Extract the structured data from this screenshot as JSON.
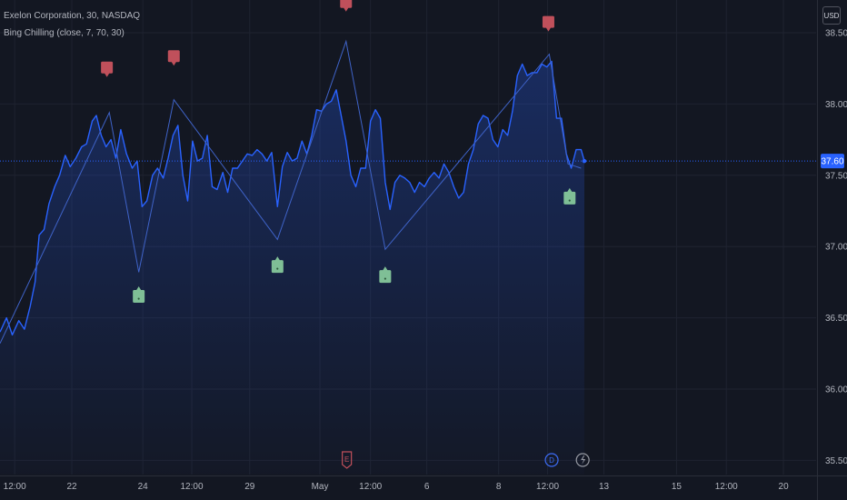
{
  "header": {
    "symbol_line": "Exelon Corporation, 30, NASDAQ",
    "indicator_line": "Bing Chilling (close, 7, 70, 30)"
  },
  "currency_button": "USD",
  "colors": {
    "background": "#131722",
    "grid": "#1f2330",
    "line": "#2962ff",
    "area_top": "rgba(41,98,255,0.28)",
    "area_bottom": "rgba(41,98,255,0.02)",
    "bear_marker": "#c0505b",
    "bull_marker": "#7fbf96",
    "axis_text": "#b2b5be",
    "price_badge": "#2962ff"
  },
  "chart_data": {
    "type": "area",
    "ylim": [
      35.4,
      38.73
    ],
    "xlim": [
      0,
      100
    ],
    "y_ticks": [
      "38.50",
      "38.00",
      "37.50",
      "37.00",
      "36.50",
      "36.00",
      "35.50"
    ],
    "y_tick_values": [
      38.5,
      38.0,
      37.5,
      37.0,
      36.5,
      36.0,
      35.5
    ],
    "x_ticks": [
      {
        "x": 1.8,
        "label": "12:00"
      },
      {
        "x": 8.8,
        "label": "22"
      },
      {
        "x": 17.5,
        "label": "24"
      },
      {
        "x": 23.5,
        "label": "12:00"
      },
      {
        "x": 30.6,
        "label": "29"
      },
      {
        "x": 39.2,
        "label": "May"
      },
      {
        "x": 45.4,
        "label": "12:00"
      },
      {
        "x": 52.3,
        "label": "6"
      },
      {
        "x": 61.1,
        "label": "8"
      },
      {
        "x": 67.1,
        "label": "12:00"
      },
      {
        "x": 74.0,
        "label": "13"
      },
      {
        "x": 82.9,
        "label": "15"
      },
      {
        "x": 89.0,
        "label": "12:00"
      },
      {
        "x": 96.0,
        "label": "20"
      }
    ],
    "last_price": "37.60",
    "last_price_value": 37.6,
    "series": [
      {
        "values": [
          [
            0.0,
            36.4
          ],
          [
            0.8,
            36.5
          ],
          [
            1.5,
            36.38
          ],
          [
            2.3,
            36.48
          ],
          [
            3.0,
            36.42
          ],
          [
            3.7,
            36.58
          ],
          [
            4.3,
            36.75
          ],
          [
            4.8,
            37.08
          ],
          [
            5.4,
            37.12
          ],
          [
            6.0,
            37.3
          ],
          [
            6.7,
            37.42
          ],
          [
            7.3,
            37.5
          ],
          [
            8.0,
            37.64
          ],
          [
            8.6,
            37.56
          ],
          [
            9.3,
            37.62
          ],
          [
            10.0,
            37.7
          ],
          [
            10.6,
            37.72
          ],
          [
            11.3,
            37.88
          ],
          [
            11.8,
            37.92
          ],
          [
            12.4,
            37.78
          ],
          [
            13.0,
            37.7
          ],
          [
            13.6,
            37.75
          ],
          [
            14.2,
            37.62
          ],
          [
            14.8,
            37.82
          ],
          [
            15.5,
            37.65
          ],
          [
            16.2,
            37.55
          ],
          [
            16.8,
            37.6
          ],
          [
            17.4,
            37.28
          ],
          [
            18.0,
            37.32
          ],
          [
            18.7,
            37.5
          ],
          [
            19.3,
            37.55
          ],
          [
            20.0,
            37.48
          ],
          [
            20.6,
            37.62
          ],
          [
            21.2,
            37.78
          ],
          [
            21.8,
            37.85
          ],
          [
            22.4,
            37.5
          ],
          [
            23.0,
            37.32
          ],
          [
            23.6,
            37.74
          ],
          [
            24.2,
            37.6
          ],
          [
            24.8,
            37.62
          ],
          [
            25.4,
            37.78
          ],
          [
            26.0,
            37.42
          ],
          [
            26.6,
            37.4
          ],
          [
            27.3,
            37.52
          ],
          [
            27.9,
            37.38
          ],
          [
            28.5,
            37.55
          ],
          [
            29.1,
            37.55
          ],
          [
            29.7,
            37.6
          ],
          [
            30.3,
            37.65
          ],
          [
            30.9,
            37.64
          ],
          [
            31.5,
            37.68
          ],
          [
            32.1,
            37.65
          ],
          [
            32.7,
            37.6
          ],
          [
            33.3,
            37.66
          ],
          [
            34.0,
            37.28
          ],
          [
            34.6,
            37.56
          ],
          [
            35.2,
            37.66
          ],
          [
            35.8,
            37.6
          ],
          [
            36.4,
            37.62
          ],
          [
            37.0,
            37.74
          ],
          [
            37.6,
            37.65
          ],
          [
            38.2,
            37.78
          ],
          [
            38.8,
            37.96
          ],
          [
            39.4,
            37.95
          ],
          [
            40.0,
            38.0
          ],
          [
            40.6,
            38.02
          ],
          [
            41.2,
            38.1
          ],
          [
            41.8,
            37.92
          ],
          [
            42.4,
            37.74
          ],
          [
            43.0,
            37.5
          ],
          [
            43.6,
            37.42
          ],
          [
            44.2,
            37.55
          ],
          [
            44.8,
            37.55
          ],
          [
            45.4,
            37.88
          ],
          [
            46.0,
            37.96
          ],
          [
            46.6,
            37.9
          ],
          [
            47.2,
            37.45
          ],
          [
            47.8,
            37.26
          ],
          [
            48.4,
            37.45
          ],
          [
            49.0,
            37.5
          ],
          [
            49.6,
            37.48
          ],
          [
            50.2,
            37.45
          ],
          [
            50.8,
            37.38
          ],
          [
            51.4,
            37.45
          ],
          [
            52.0,
            37.42
          ],
          [
            52.6,
            37.48
          ],
          [
            53.2,
            37.52
          ],
          [
            53.8,
            37.48
          ],
          [
            54.4,
            37.58
          ],
          [
            55.0,
            37.52
          ],
          [
            55.6,
            37.42
          ],
          [
            56.2,
            37.34
          ],
          [
            56.8,
            37.38
          ],
          [
            57.4,
            37.58
          ],
          [
            58.0,
            37.68
          ],
          [
            58.6,
            37.86
          ],
          [
            59.2,
            37.92
          ],
          [
            59.8,
            37.9
          ],
          [
            60.4,
            37.75
          ],
          [
            61.0,
            37.7
          ],
          [
            61.6,
            37.82
          ],
          [
            62.2,
            37.78
          ],
          [
            62.8,
            37.95
          ],
          [
            63.4,
            38.2
          ],
          [
            64.0,
            38.28
          ],
          [
            64.6,
            38.2
          ],
          [
            65.2,
            38.22
          ],
          [
            65.8,
            38.22
          ],
          [
            66.4,
            38.28
          ],
          [
            67.0,
            38.26
          ],
          [
            67.6,
            38.3
          ],
          [
            68.2,
            37.9
          ],
          [
            68.8,
            37.9
          ],
          [
            69.4,
            37.65
          ],
          [
            70.0,
            37.55
          ],
          [
            70.6,
            37.68
          ],
          [
            71.2,
            37.68
          ],
          [
            71.6,
            37.6
          ]
        ]
      }
    ],
    "zigzag": [
      [
        0.0,
        36.32
      ],
      [
        13.4,
        37.94
      ],
      [
        17.0,
        36.82
      ],
      [
        21.3,
        38.03
      ],
      [
        34.0,
        37.05
      ],
      [
        42.4,
        38.44
      ],
      [
        47.2,
        36.98
      ],
      [
        67.3,
        38.35
      ],
      [
        69.6,
        37.58
      ],
      [
        71.2,
        37.55
      ]
    ],
    "bear_markers": [
      13.1,
      21.3,
      42.4,
      67.2
    ],
    "bear_marker_value": [
      38.24,
      38.32,
      38.7,
      38.56
    ],
    "bull_markers": [
      17.0,
      34.0,
      47.2,
      69.8
    ],
    "bull_marker_value": [
      36.65,
      36.86,
      36.79,
      37.34
    ],
    "bottom_events": [
      {
        "x": 42.5,
        "icon": "earnings-icon"
      },
      {
        "x": 67.6,
        "icon": "dividend-icon"
      },
      {
        "x": 71.4,
        "icon": "split-icon"
      }
    ]
  }
}
